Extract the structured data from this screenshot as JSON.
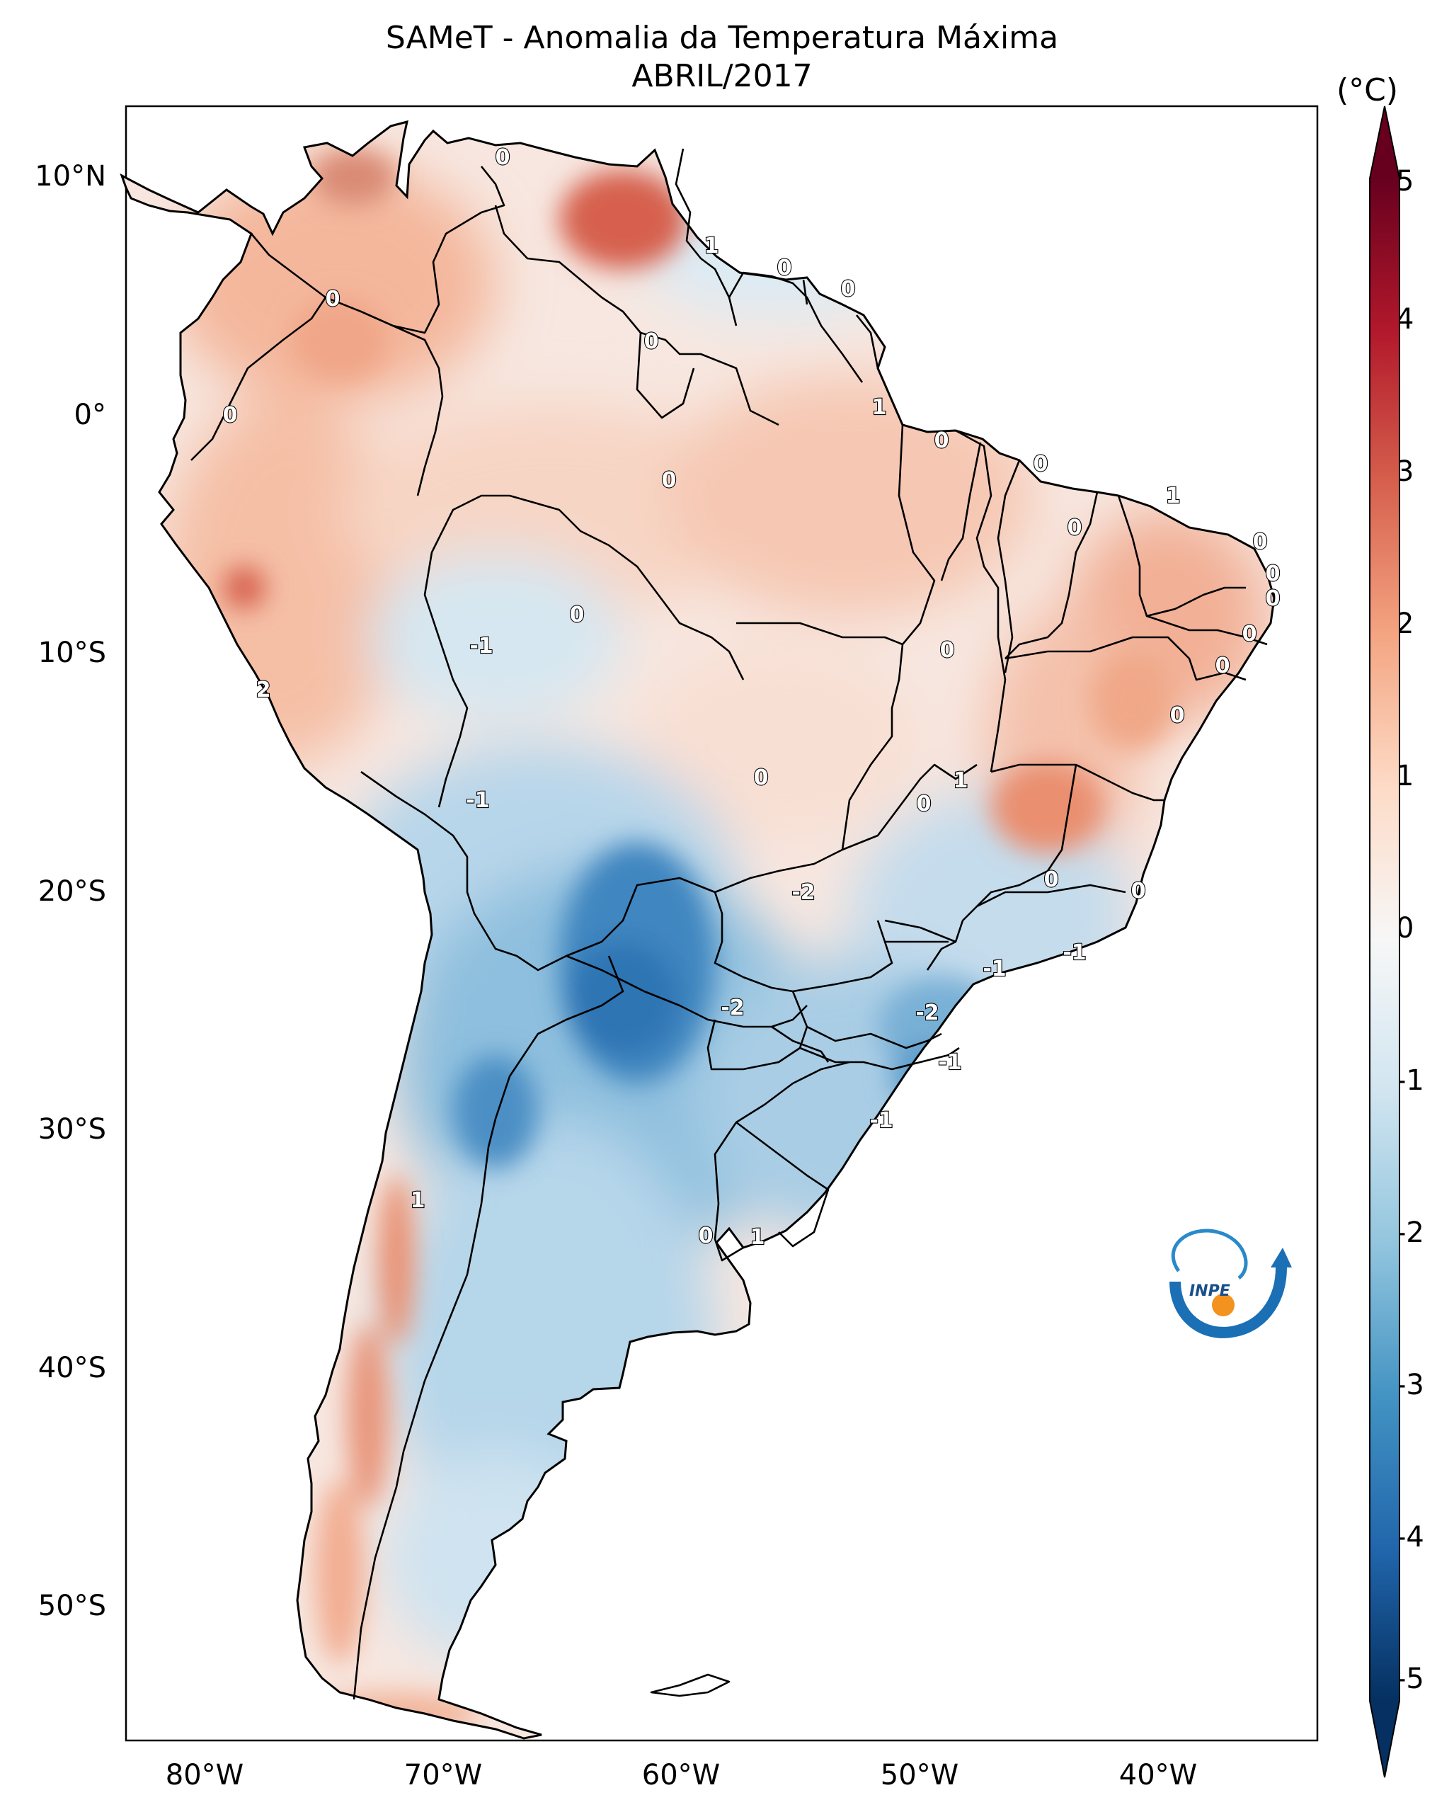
{
  "title": "SAMeT - Anomalia da Temperatura Máxima",
  "subtitle": "ABRIL/2017",
  "colorbar": {
    "unit": "(°C)",
    "ticks": [
      "5",
      "4",
      "3",
      "2",
      "1",
      "0",
      "-1",
      "-2",
      "-3",
      "-4",
      "-5"
    ],
    "range": [
      -5,
      5
    ],
    "colormap": "RdBu_r",
    "extend": "both"
  },
  "axes": {
    "lat_ticks": [
      "10°N",
      "0°",
      "10°S",
      "20°S",
      "30°S",
      "40°S",
      "50°S"
    ],
    "lon_ticks": [
      "80°W",
      "70°W",
      "60°W",
      "50°W",
      "40°W"
    ],
    "lon_range": [
      -83,
      -33
    ],
    "lat_range": [
      -56,
      13
    ]
  },
  "contour_labels": [
    "0",
    "0",
    "1",
    "0",
    "0",
    "0",
    "0",
    "0",
    "1",
    "0",
    "0",
    "1",
    "0",
    "0",
    "0",
    "0",
    "0",
    "0",
    "0",
    "0",
    "-1",
    "0",
    "2",
    "-1",
    "0",
    "0",
    "1",
    "0",
    "0",
    "-2",
    "-1",
    "-1",
    "-2",
    "-2",
    "-1",
    "-1",
    "1",
    "0",
    "1"
  ],
  "logo": {
    "text": "INPE"
  },
  "colors": {
    "cold_strong": "#2166ac",
    "cold": "#92c5de",
    "neutral": "#f7f7f7",
    "warm": "#f4a582",
    "warm_strong": "#b2182b",
    "border": "#000000"
  }
}
